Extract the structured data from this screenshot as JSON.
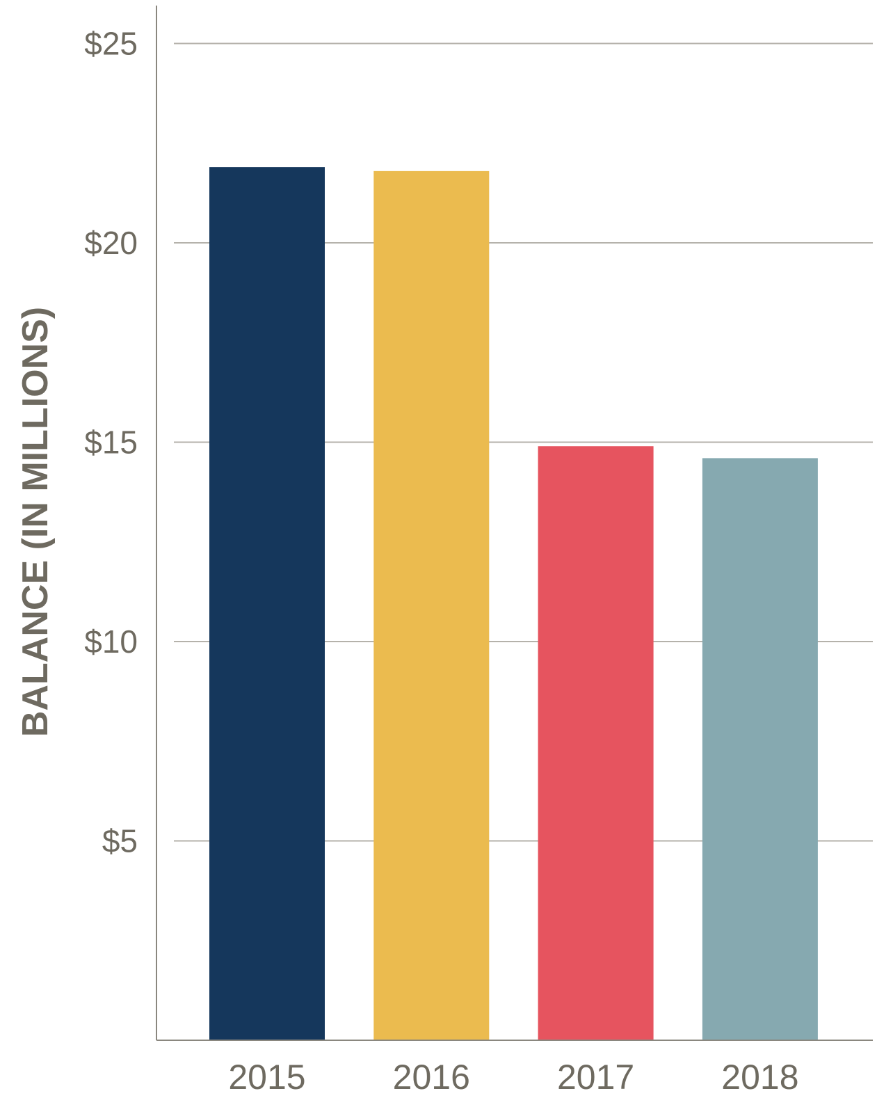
{
  "chart_data": {
    "type": "bar",
    "title": "",
    "xlabel": "",
    "ylabel": "BALANCE (IN MILLIONS)",
    "categories": [
      "2015",
      "2016",
      "2017",
      "2018"
    ],
    "values": [
      21.9,
      21.8,
      14.9,
      14.6
    ],
    "colors": [
      "#15375c",
      "#ebbb4f",
      "#e6545f",
      "#86a9b0"
    ],
    "ylim": [
      0,
      25
    ],
    "yticks": [
      5,
      10,
      15,
      20,
      25
    ],
    "ytick_labels": [
      "$5",
      "$10",
      "$15",
      "$20",
      "$25"
    ],
    "grid": true,
    "legend": "none"
  }
}
